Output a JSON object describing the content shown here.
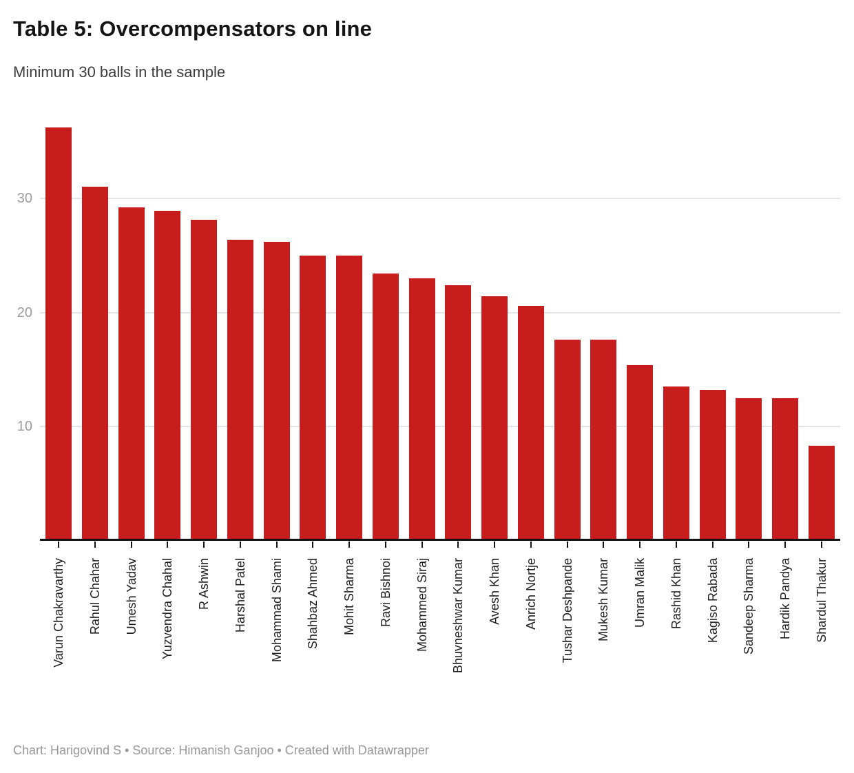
{
  "header": {
    "title": "Table 5: Overcompensators on line",
    "subtitle": "Minimum 30 balls in the sample"
  },
  "footer": {
    "text": "Chart: Harigovind S • Source: Himanish Ganjoo • Created with Datawrapper"
  },
  "colors": {
    "bar": "#c71e1d",
    "gridline": "#e4e4e4",
    "axis_line": "#131313",
    "y_tick_label": "#9c9c9c",
    "x_tick_label": "#1f1f1f",
    "footer_text": "#989898"
  },
  "chart_data": {
    "type": "bar",
    "title": "Table 5: Overcompensators on line",
    "subtitle": "Minimum 30 balls in the sample",
    "categories": [
      "Varun Chakravarthy",
      "Rahul Chahar",
      "Umesh Yadav",
      "Yuzvendra Chahal",
      "R Ashwin",
      "Harshal Patel",
      "Mohammad Shami",
      "Shahbaz Ahmed",
      "Mohit Sharma",
      "Ravi Bishnoi",
      "Mohammed Siraj",
      "Bhuvneshwar Kumar",
      "Avesh Khan",
      "Anrich Nortje",
      "Tushar Deshpande",
      "Mukesh Kumar",
      "Umran Malik",
      "Rashid Khan",
      "Kagiso Rabada",
      "Sandeep Sharma",
      "Hardik Pandya",
      "Shardul Thakur"
    ],
    "values": [
      36.2,
      31.0,
      29.2,
      28.9,
      28.1,
      26.4,
      26.2,
      25.0,
      25.0,
      23.4,
      23.0,
      22.4,
      21.4,
      20.6,
      17.6,
      17.6,
      15.4,
      13.5,
      13.2,
      12.5,
      12.5,
      8.3
    ],
    "xlabel": "",
    "ylabel": "",
    "ylim": [
      0,
      38
    ],
    "yticks": [
      10,
      20,
      30
    ],
    "grid": "horizontal",
    "legend": "none",
    "bar_color": "#c71e1d"
  }
}
